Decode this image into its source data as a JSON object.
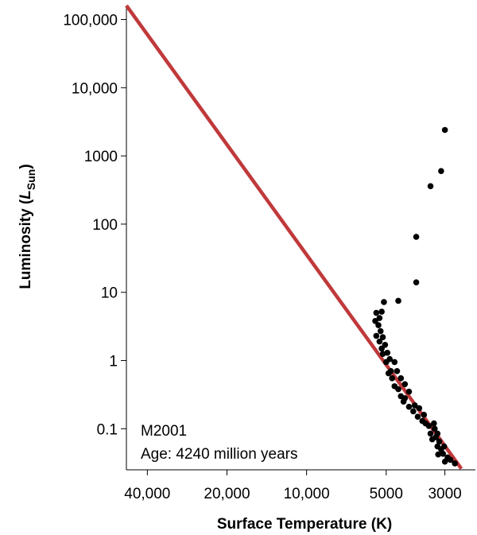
{
  "chart_data": {
    "type": "scatter",
    "title": "",
    "xlabel": "Surface Temperature (K)",
    "ylabel": "Luminosity (",
    "ylabel_symbol": "L",
    "ylabel_subscript": "Sun",
    "ylabel_close": ")",
    "x_scale": "log",
    "x_reversed": true,
    "y_scale": "log",
    "xlim": [
      2300,
      48000
    ],
    "ylim": [
      0.025,
      160000
    ],
    "x_ticks": [
      {
        "value": 40000,
        "label": "40,000"
      },
      {
        "value": 20000,
        "label": "20,000"
      },
      {
        "value": 10000,
        "label": "10,000"
      },
      {
        "value": 5000,
        "label": "5000"
      },
      {
        "value": 3000,
        "label": "3000"
      }
    ],
    "y_ticks": [
      {
        "value": 100000,
        "label": "100,000"
      },
      {
        "value": 10000,
        "label": "10,000"
      },
      {
        "value": 1000,
        "label": "1000"
      },
      {
        "value": 100,
        "label": "100"
      },
      {
        "value": 10,
        "label": "10"
      },
      {
        "value": 1,
        "label": "1"
      },
      {
        "value": 0.1,
        "label": "0.1"
      }
    ],
    "grid": false,
    "main_sequence_line": {
      "color": "#c0393b",
      "points": [
        [
          48000,
          160000
        ],
        [
          2600,
          0.026
        ]
      ]
    },
    "point_color": "#000000",
    "annotations": {
      "cluster": "M2001",
      "age": "Age: 4240 million years"
    },
    "points": [
      [
        2750,
        0.031
      ],
      [
        2860,
        0.035
      ],
      [
        2930,
        0.038
      ],
      [
        3000,
        0.033
      ],
      [
        3050,
        0.043
      ],
      [
        3100,
        0.05
      ],
      [
        3020,
        0.055
      ],
      [
        3180,
        0.042
      ],
      [
        3200,
        0.055
      ],
      [
        3150,
        0.065
      ],
      [
        3200,
        0.085
      ],
      [
        3250,
        0.075
      ],
      [
        3350,
        0.07
      ],
      [
        3280,
        0.1
      ],
      [
        3400,
        0.085
      ],
      [
        3300,
        0.12
      ],
      [
        3450,
        0.11
      ],
      [
        3550,
        0.12
      ],
      [
        3650,
        0.13
      ],
      [
        3600,
        0.16
      ],
      [
        3800,
        0.15
      ],
      [
        3750,
        0.2
      ],
      [
        3950,
        0.18
      ],
      [
        3900,
        0.22
      ],
      [
        4100,
        0.21
      ],
      [
        4250,
        0.28
      ],
      [
        4100,
        0.35
      ],
      [
        4300,
        0.25
      ],
      [
        4400,
        0.3
      ],
      [
        4250,
        0.45
      ],
      [
        4500,
        0.38
      ],
      [
        4400,
        0.55
      ],
      [
        4650,
        0.42
      ],
      [
        4550,
        0.7
      ],
      [
        4750,
        0.55
      ],
      [
        4800,
        0.7
      ],
      [
        4650,
        0.95
      ],
      [
        4900,
        0.65
      ],
      [
        4850,
        1.05
      ],
      [
        5000,
        0.95
      ],
      [
        4950,
        1.3
      ],
      [
        5150,
        1.25
      ],
      [
        5050,
        1.7
      ],
      [
        5200,
        1.5
      ],
      [
        5150,
        2.2
      ],
      [
        5300,
        1.9
      ],
      [
        5250,
        2.7
      ],
      [
        5350,
        3.3
      ],
      [
        5450,
        2.3
      ],
      [
        5300,
        4.2
      ],
      [
        5500,
        3.8
      ],
      [
        5450,
        5.0
      ],
      [
        5200,
        5.2
      ],
      [
        5100,
        7.2
      ],
      [
        4500,
        7.5
      ],
      [
        3850,
        14
      ],
      [
        3850,
        65
      ],
      [
        3400,
        360
      ],
      [
        3100,
        600
      ],
      [
        3000,
        2400
      ]
    ]
  }
}
